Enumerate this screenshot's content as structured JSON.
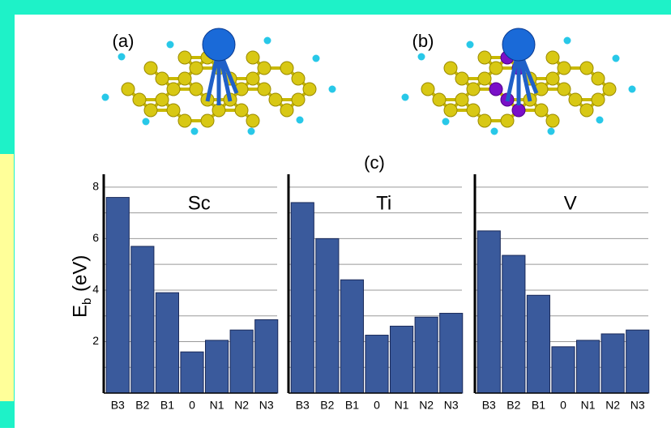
{
  "figure": {
    "labels": [
      "(a)",
      "(b)",
      "(c)"
    ],
    "y_label": "E",
    "y_label_sub": "b",
    "y_label_unit": "(eV)"
  },
  "chart_data": [
    {
      "type": "bar",
      "title": "Sc",
      "categories": [
        "B3",
        "B2",
        "B1",
        "0",
        "N1",
        "N2",
        "N3"
      ],
      "values": [
        7.6,
        5.7,
        3.9,
        1.6,
        2.05,
        2.45,
        2.85
      ],
      "color": "#3a5a9c",
      "ylim": [
        0,
        8.5
      ],
      "yticks": [
        2,
        4,
        6,
        8
      ],
      "minor_yticks": [
        1,
        3,
        5,
        7
      ],
      "grid": true
    },
    {
      "type": "bar",
      "title": "Ti",
      "categories": [
        "B3",
        "B2",
        "B1",
        "0",
        "N1",
        "N2",
        "N3"
      ],
      "values": [
        7.4,
        6.0,
        4.4,
        2.25,
        2.6,
        2.95,
        3.1
      ],
      "color": "#3a5a9c",
      "ylim": [
        0,
        8.5
      ],
      "yticks": [
        2,
        4,
        6,
        8
      ],
      "minor_yticks": [
        1,
        3,
        5,
        7
      ],
      "grid": true
    },
    {
      "type": "bar",
      "title": "V",
      "categories": [
        "B3",
        "B2",
        "B1",
        "0",
        "N1",
        "N2",
        "N3"
      ],
      "values": [
        6.3,
        5.35,
        3.8,
        1.8,
        2.05,
        2.3,
        2.45
      ],
      "color": "#3a5a9c",
      "ylim": [
        0,
        8.5
      ],
      "yticks": [
        2,
        4,
        6,
        8
      ],
      "minor_yticks": [
        1,
        3,
        5,
        7
      ],
      "grid": true
    }
  ]
}
